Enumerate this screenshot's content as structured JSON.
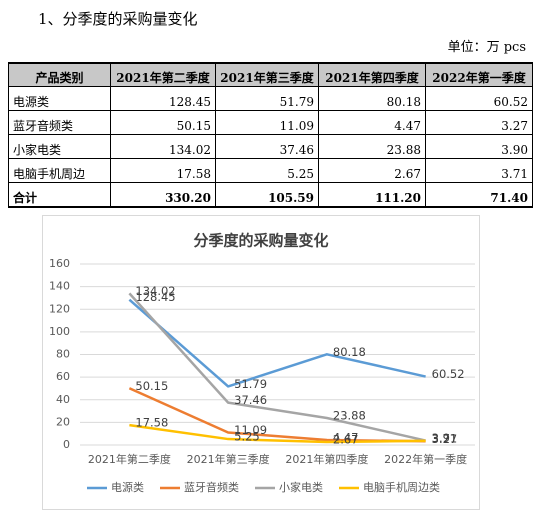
{
  "header": {
    "title": "1、分季度的采购量变化",
    "unit": "单位：万 pcs"
  },
  "table": {
    "columns": [
      "产品类别",
      "2021年第二季度",
      "2021年第三季度",
      "2021年第四季度",
      "2022年第一季度"
    ],
    "rows": [
      [
        "电源类",
        "128.45",
        "51.79",
        "80.18",
        "60.52"
      ],
      [
        "蓝牙音频类",
        "50.15",
        "11.09",
        "4.47",
        "3.27"
      ],
      [
        "小家电类",
        "134.02",
        "37.46",
        "23.88",
        "3.90"
      ],
      [
        "电脑手机周边",
        "17.58",
        "5.25",
        "2.67",
        "3.71"
      ],
      [
        "合计",
        "330.20",
        "105.59",
        "111.20",
        "71.40"
      ]
    ]
  },
  "chart_data": {
    "type": "line",
    "title": "分季度的采购量变化",
    "categories": [
      "2021年第二季度",
      "2021年第三季度",
      "2021年第四季度",
      "2022年第一季度"
    ],
    "series": [
      {
        "name": "电源类",
        "color": "#5b9bd5",
        "values": [
          128.45,
          51.79,
          80.18,
          60.52
        ]
      },
      {
        "name": "蓝牙音频类",
        "color": "#ed7d31",
        "values": [
          50.15,
          11.09,
          4.47,
          3.27
        ]
      },
      {
        "name": "小家电类",
        "color": "#a5a5a5",
        "values": [
          134.02,
          37.46,
          23.88,
          3.9
        ]
      },
      {
        "name": "电脑手机周边类",
        "color": "#ffc000",
        "values": [
          17.58,
          5.25,
          2.67,
          3.71
        ]
      }
    ],
    "ylim": [
      0,
      160
    ],
    "yticks": [
      0,
      20,
      40,
      60,
      80,
      100,
      120,
      140,
      160
    ],
    "grid": true,
    "legend": "bottom"
  }
}
